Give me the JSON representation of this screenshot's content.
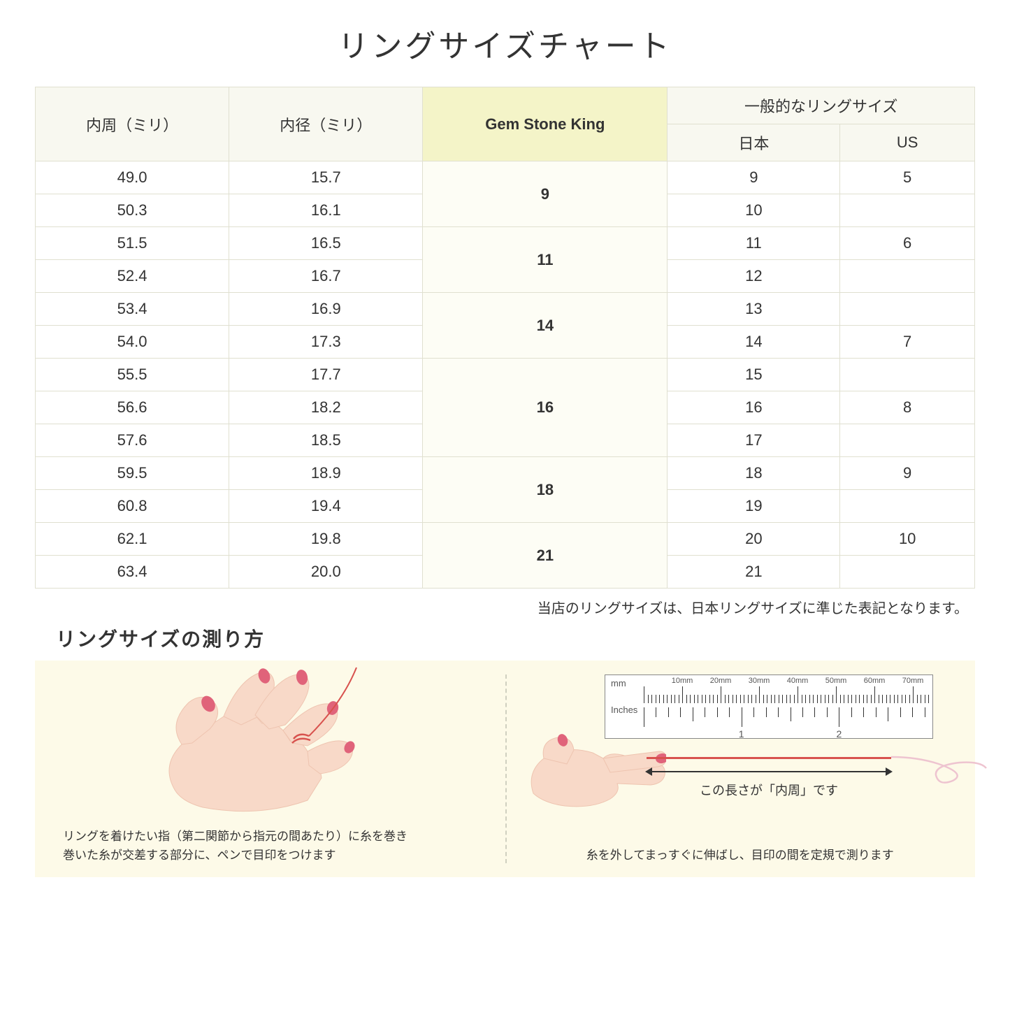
{
  "title": "リングサイズチャート",
  "table": {
    "headers": {
      "circumference": "内周（ミリ）",
      "diameter": "内径（ミリ）",
      "gsk": "Gem Stone King",
      "general": "一般的なリングサイズ",
      "japan": "日本",
      "us": "US"
    },
    "groups": [
      {
        "gsk": "9",
        "rows": [
          {
            "c": "49.0",
            "d": "15.7",
            "jp": "9",
            "us": "5"
          },
          {
            "c": "50.3",
            "d": "16.1",
            "jp": "10",
            "us": ""
          }
        ]
      },
      {
        "gsk": "11",
        "rows": [
          {
            "c": "51.5",
            "d": "16.5",
            "jp": "11",
            "us": "6"
          },
          {
            "c": "52.4",
            "d": "16.7",
            "jp": "12",
            "us": ""
          }
        ]
      },
      {
        "gsk": "14",
        "rows": [
          {
            "c": "53.4",
            "d": "16.9",
            "jp": "13",
            "us": ""
          },
          {
            "c": "54.0",
            "d": "17.3",
            "jp": "14",
            "us": "7"
          }
        ]
      },
      {
        "gsk": "16",
        "rows": [
          {
            "c": "55.5",
            "d": "17.7",
            "jp": "15",
            "us": ""
          },
          {
            "c": "56.6",
            "d": "18.2",
            "jp": "16",
            "us": "8"
          },
          {
            "c": "57.6",
            "d": "18.5",
            "jp": "17",
            "us": ""
          }
        ]
      },
      {
        "gsk": "18",
        "rows": [
          {
            "c": "59.5",
            "d": "18.9",
            "jp": "18",
            "us": "9"
          },
          {
            "c": "60.8",
            "d": "19.4",
            "jp": "19",
            "us": ""
          }
        ]
      },
      {
        "gsk": "21",
        "rows": [
          {
            "c": "62.1",
            "d": "19.8",
            "jp": "20",
            "us": "10"
          },
          {
            "c": "63.4",
            "d": "20.0",
            "jp": "21",
            "us": ""
          }
        ]
      }
    ]
  },
  "note": "当店のリングサイズは、日本リングサイズに準じた表記となります。",
  "measure_title": "リングサイズの測り方",
  "instruction_left": "リングを着けたい指（第二関節から指元の間あたり）に糸を巻き\n巻いた糸が交差する部分に、ペンで目印をつけます",
  "instruction_right": "糸を外してまっすぐに伸ばし、目印の間を定規で測ります",
  "ruler": {
    "mm_label": "mm",
    "inches_label": "Inches",
    "mm_marks": [
      "10mm",
      "20mm",
      "30mm",
      "40mm",
      "50mm",
      "60mm",
      "70mm"
    ],
    "inch_marks": [
      "1",
      "2"
    ],
    "arrow_label": "この長さが「内周」です"
  },
  "colors": {
    "header_bg": "#f8f8f0",
    "gsk_header_bg": "#f4f4c8",
    "gsk_col_bg": "#fdfdf5",
    "border": "#e0e0d0",
    "panel_bg": "#fdfae8",
    "thread": "#d8524e",
    "skin": "#f8d9c8",
    "nail": "#e0637a"
  }
}
